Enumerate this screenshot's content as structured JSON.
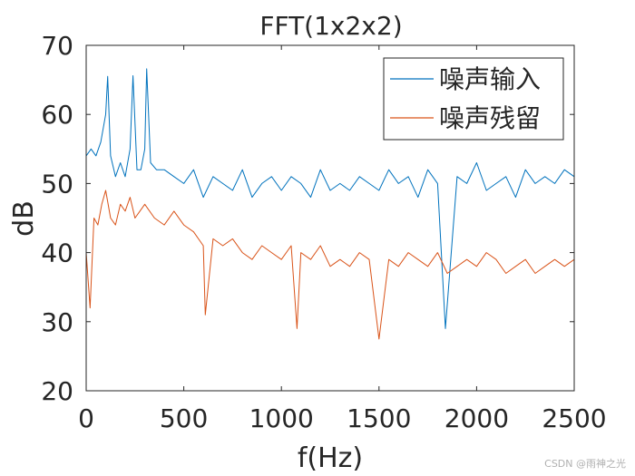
{
  "chart_data": {
    "type": "line",
    "title": "FFT(1x2x2)",
    "xlabel": "f(Hz)",
    "ylabel": "dB",
    "xlim": [
      0,
      2500
    ],
    "ylim": [
      20,
      70
    ],
    "xticks": [
      0,
      500,
      1000,
      1500,
      2000,
      2500
    ],
    "yticks": [
      20,
      30,
      40,
      50,
      60,
      70
    ],
    "grid": false,
    "legend_position": "top-right",
    "series": [
      {
        "name": "噪声输入",
        "color": "#0072BD",
        "x": [
          0,
          25,
          50,
          75,
          100,
          110,
          125,
          150,
          175,
          200,
          225,
          240,
          260,
          280,
          300,
          310,
          330,
          360,
          400,
          450,
          500,
          550,
          600,
          650,
          700,
          750,
          800,
          850,
          900,
          950,
          1000,
          1050,
          1100,
          1150,
          1200,
          1250,
          1300,
          1350,
          1400,
          1450,
          1500,
          1550,
          1600,
          1650,
          1700,
          1750,
          1800,
          1840,
          1900,
          1950,
          2000,
          2050,
          2100,
          2150,
          2200,
          2250,
          2300,
          2350,
          2400,
          2450,
          2500
        ],
        "values": [
          54,
          55,
          54,
          56,
          60,
          65.5,
          54,
          51,
          53,
          51,
          55,
          65.6,
          52,
          52,
          55,
          66.6,
          53,
          52,
          52,
          51,
          50,
          52,
          48,
          51,
          50,
          49,
          52,
          48,
          50,
          51,
          49,
          51,
          50,
          48,
          52,
          49,
          50,
          49,
          51,
          50,
          49,
          52,
          50,
          51,
          48,
          52,
          50,
          29,
          51,
          50,
          53,
          49,
          50,
          51,
          48,
          52,
          50,
          51,
          50,
          52,
          51
        ]
      },
      {
        "name": "噪声残留",
        "color": "#D95319",
        "x": [
          0,
          20,
          40,
          60,
          80,
          100,
          125,
          150,
          175,
          200,
          225,
          250,
          275,
          300,
          350,
          400,
          450,
          500,
          550,
          600,
          610,
          650,
          700,
          750,
          800,
          850,
          900,
          950,
          1000,
          1050,
          1080,
          1100,
          1150,
          1200,
          1250,
          1300,
          1350,
          1400,
          1450,
          1500,
          1550,
          1600,
          1650,
          1700,
          1750,
          1800,
          1850,
          1900,
          1950,
          2000,
          2050,
          2100,
          2150,
          2200,
          2250,
          2300,
          2350,
          2400,
          2450,
          2500
        ],
        "values": [
          40,
          32,
          45,
          44,
          47,
          49,
          45,
          44,
          47,
          46,
          48,
          45,
          46,
          47,
          45,
          44,
          46,
          44,
          43,
          41,
          31,
          42,
          41,
          42,
          40,
          39,
          41,
          40,
          39,
          41,
          29,
          40,
          39,
          41,
          38,
          39,
          38,
          40,
          39,
          27.5,
          39,
          38,
          40,
          39,
          38,
          40,
          37,
          38,
          39,
          38,
          40,
          39,
          37,
          38,
          39,
          37,
          38,
          39,
          38,
          39
        ]
      }
    ]
  },
  "watermark": "CSDN @雨神之光"
}
